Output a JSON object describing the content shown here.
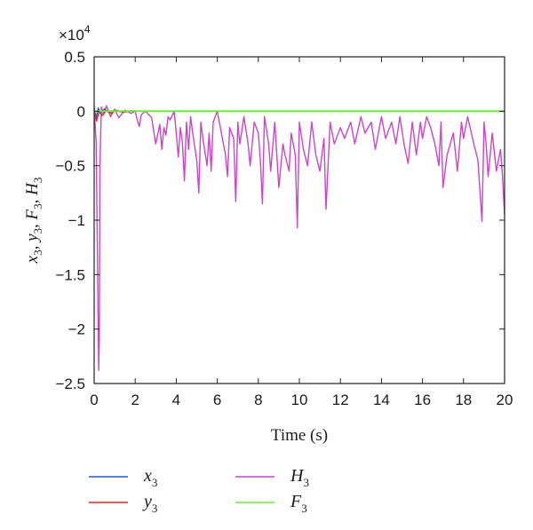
{
  "chart_data": {
    "type": "line",
    "xlabel": "Time (s)",
    "ylabel": [
      "x",
      "3",
      ", y",
      "3",
      ", F",
      "3",
      ", H",
      "3"
    ],
    "scale_factor": {
      "base": "×10",
      "exp": "4"
    },
    "xlim": [
      0,
      20
    ],
    "ylim": [
      -2.5,
      0.5
    ],
    "xticks": [
      0,
      2,
      4,
      6,
      8,
      10,
      12,
      14,
      16,
      18,
      20
    ],
    "yticks": [
      0.5,
      0,
      -0.5,
      -1,
      -1.5,
      -2,
      -2.5
    ],
    "ytick_labels": [
      "0.5",
      "0",
      "−0.5",
      "−1",
      "−1.5",
      "−2",
      "−2.5"
    ],
    "grid": false,
    "legend_position": "bottom",
    "series": [
      {
        "name": [
          "x",
          "3"
        ],
        "color": "#2255dd",
        "x": [
          0,
          0.1,
          0.2,
          0.3,
          0.5,
          0.7,
          1.0,
          1.3,
          1.8,
          2.0,
          20
        ],
        "y": [
          0.02,
          -0.06,
          0.03,
          -0.02,
          0.02,
          -0.01,
          0.005,
          -0.005,
          0.003,
          0,
          0
        ]
      },
      {
        "name": [
          "y",
          "3"
        ],
        "color": "#ee2222",
        "x": [
          0,
          0.12,
          0.25,
          0.4,
          0.6,
          0.8,
          1.1,
          1.4,
          1.9,
          2.1,
          20
        ],
        "y": [
          0.01,
          -0.09,
          0.01,
          -0.04,
          0.01,
          -0.02,
          0.01,
          -0.01,
          0.004,
          0,
          0
        ]
      },
      {
        "name": [
          "H",
          "3"
        ],
        "color": "#cc44cc",
        "x": [
          0,
          0.1,
          0.15,
          0.22,
          0.25,
          0.28,
          0.35,
          0.45,
          0.6,
          0.8,
          1.0,
          1.2,
          1.5,
          1.8,
          2.0,
          2.1,
          2.2,
          2.3,
          2.5,
          2.8,
          3.0,
          3.2,
          3.3,
          3.4,
          3.5,
          3.6,
          3.7,
          3.9,
          4.0,
          4.1,
          4.2,
          4.3,
          4.4,
          4.5,
          4.6,
          4.7,
          4.8,
          5.0,
          5.1,
          5.2,
          5.3,
          5.5,
          5.6,
          5.7,
          5.8,
          6.0,
          6.2,
          6.4,
          6.5,
          6.6,
          6.8,
          6.9,
          7.0,
          7.1,
          7.3,
          7.5,
          7.6,
          7.8,
          8.0,
          8.1,
          8.2,
          8.3,
          8.5,
          8.6,
          8.8,
          9.0,
          9.2,
          9.3,
          9.5,
          9.6,
          9.8,
          9.9,
          10.0,
          10.2,
          10.4,
          10.6,
          10.8,
          11.0,
          11.2,
          11.3,
          11.5,
          11.7,
          12.0,
          12.2,
          12.5,
          12.7,
          13.0,
          13.2,
          13.5,
          13.7,
          14.0,
          14.2,
          14.5,
          14.7,
          14.9,
          15.1,
          15.3,
          15.5,
          15.7,
          15.9,
          16.0,
          16.2,
          16.4,
          16.6,
          16.8,
          16.9,
          17.0,
          17.2,
          17.5,
          17.7,
          17.9,
          18.0,
          18.2,
          18.5,
          18.7,
          18.9,
          19.0,
          19.1,
          19.2,
          19.4,
          19.6,
          19.8,
          19.9,
          20.0
        ],
        "y": [
          0.05,
          -0.3,
          -1.2,
          -2.38,
          -2.1,
          -0.5,
          0.04,
          -0.02,
          0.05,
          -0.05,
          0.02,
          -0.06,
          0.01,
          -0.02,
          0.0,
          -0.08,
          -0.14,
          -0.03,
          0.0,
          -0.06,
          -0.3,
          -0.12,
          -0.35,
          -0.15,
          -0.22,
          -0.05,
          -0.08,
          0.0,
          -0.2,
          -0.42,
          -0.15,
          -0.28,
          -0.64,
          -0.1,
          -0.35,
          -0.05,
          -0.2,
          -0.45,
          -0.75,
          -0.1,
          -0.25,
          -0.5,
          -0.2,
          -0.55,
          -0.1,
          0.0,
          -0.2,
          -0.4,
          -0.6,
          -0.15,
          -0.25,
          -0.83,
          -0.1,
          -0.3,
          -0.05,
          -0.3,
          -0.5,
          -0.1,
          -0.2,
          -0.45,
          -0.85,
          -0.05,
          -0.3,
          -0.55,
          -0.1,
          -0.7,
          -0.3,
          -0.4,
          -0.55,
          -0.2,
          -0.4,
          -1.07,
          -0.1,
          -0.35,
          -0.5,
          -0.1,
          -0.4,
          -0.55,
          -0.25,
          -0.9,
          -0.1,
          -0.3,
          -0.15,
          -0.25,
          -0.1,
          -0.3,
          -0.05,
          -0.2,
          -0.1,
          -0.35,
          -0.05,
          -0.25,
          -0.1,
          -0.3,
          -0.05,
          -0.3,
          -0.48,
          -0.1,
          -0.4,
          -0.1,
          -0.25,
          -0.05,
          -0.15,
          -0.3,
          -0.5,
          -0.1,
          -0.7,
          -0.4,
          -0.2,
          -0.55,
          -0.1,
          -0.25,
          -0.05,
          -0.3,
          -0.45,
          -1.01,
          -0.1,
          -0.3,
          -0.6,
          -0.2,
          -0.55,
          -0.35,
          -0.6,
          -0.95
        ],
        "_note": ""
      },
      {
        "name": [
          "F",
          "3"
        ],
        "color": "#66ee33",
        "x": [
          0,
          20
        ],
        "y": [
          0.0,
          0.0
        ]
      }
    ],
    "legend": [
      {
        "name": [
          "x",
          "3"
        ],
        "color": "#2255dd"
      },
      {
        "name": [
          "y",
          "3"
        ],
        "color": "#ee2222"
      },
      {
        "name": [
          "H",
          "3"
        ],
        "color": "#cc44cc"
      },
      {
        "name": [
          "F",
          "3"
        ],
        "color": "#66ee33"
      }
    ]
  }
}
